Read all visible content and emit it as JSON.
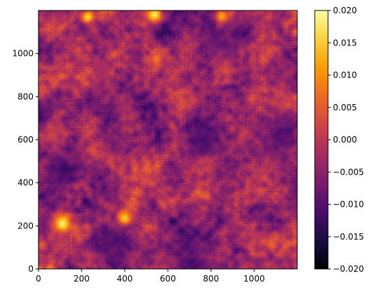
{
  "chart_data": {
    "type": "heatmap",
    "title": "",
    "xlabel": "",
    "ylabel": "",
    "xlim": [
      0,
      1200
    ],
    "ylim": [
      0,
      1200
    ],
    "x_ticks": [
      {
        "value": 0,
        "label": "0"
      },
      {
        "value": 200,
        "label": "200"
      },
      {
        "value": 400,
        "label": "400"
      },
      {
        "value": 600,
        "label": "600"
      },
      {
        "value": 800,
        "label": "800"
      },
      {
        "value": 1000,
        "label": "1000"
      }
    ],
    "y_ticks": [
      {
        "value": 0,
        "label": "0"
      },
      {
        "value": 200,
        "label": "200"
      },
      {
        "value": 400,
        "label": "400"
      },
      {
        "value": 600,
        "label": "600"
      },
      {
        "value": 800,
        "label": "800"
      },
      {
        "value": 1000,
        "label": "1000"
      }
    ],
    "colorbar": {
      "colormap": "inferno",
      "range": [
        -0.02,
        0.02
      ],
      "ticks": [
        {
          "value": 0.02,
          "label": "0.020"
        },
        {
          "value": 0.015,
          "label": "0.015"
        },
        {
          "value": 0.01,
          "label": "0.010"
        },
        {
          "value": 0.005,
          "label": "0.005"
        },
        {
          "value": 0.0,
          "label": "0.000"
        },
        {
          "value": -0.005,
          "label": "−0.005"
        },
        {
          "value": -0.01,
          "label": "−0.010"
        },
        {
          "value": -0.015,
          "label": "−0.015"
        },
        {
          "value": -0.02,
          "label": "−0.020"
        }
      ]
    },
    "hotspots": [
      {
        "x": 110,
        "y": 210,
        "radius": 45,
        "value": 0.02
      },
      {
        "x": 400,
        "y": 235,
        "radius": 30,
        "value": 0.02
      },
      {
        "x": 540,
        "y": 1180,
        "radius": 35,
        "value": 0.02
      },
      {
        "x": 230,
        "y": 1170,
        "radius": 30,
        "value": 0.018
      },
      {
        "x": 850,
        "y": 1170,
        "radius": 30,
        "value": 0.018
      }
    ],
    "coldspots": [
      {
        "x": 110,
        "y": 470,
        "radius": 90,
        "value": -0.016
      },
      {
        "x": 1110,
        "y": 600,
        "radius": 100,
        "value": -0.016
      },
      {
        "x": 330,
        "y": 130,
        "radius": 90,
        "value": -0.015
      },
      {
        "x": 700,
        "y": 60,
        "radius": 110,
        "value": -0.014
      },
      {
        "x": 870,
        "y": 1060,
        "radius": 90,
        "value": -0.014
      },
      {
        "x": 750,
        "y": 600,
        "radius": 90,
        "value": -0.013
      }
    ],
    "grid": false
  },
  "colors": {
    "inferno_stops": [
      "#000004",
      "#1b0c41",
      "#4a0c6b",
      "#781c6d",
      "#a52c60",
      "#cf4446",
      "#ed6925",
      "#fb9b06",
      "#f7d13d",
      "#fcffa4"
    ]
  }
}
